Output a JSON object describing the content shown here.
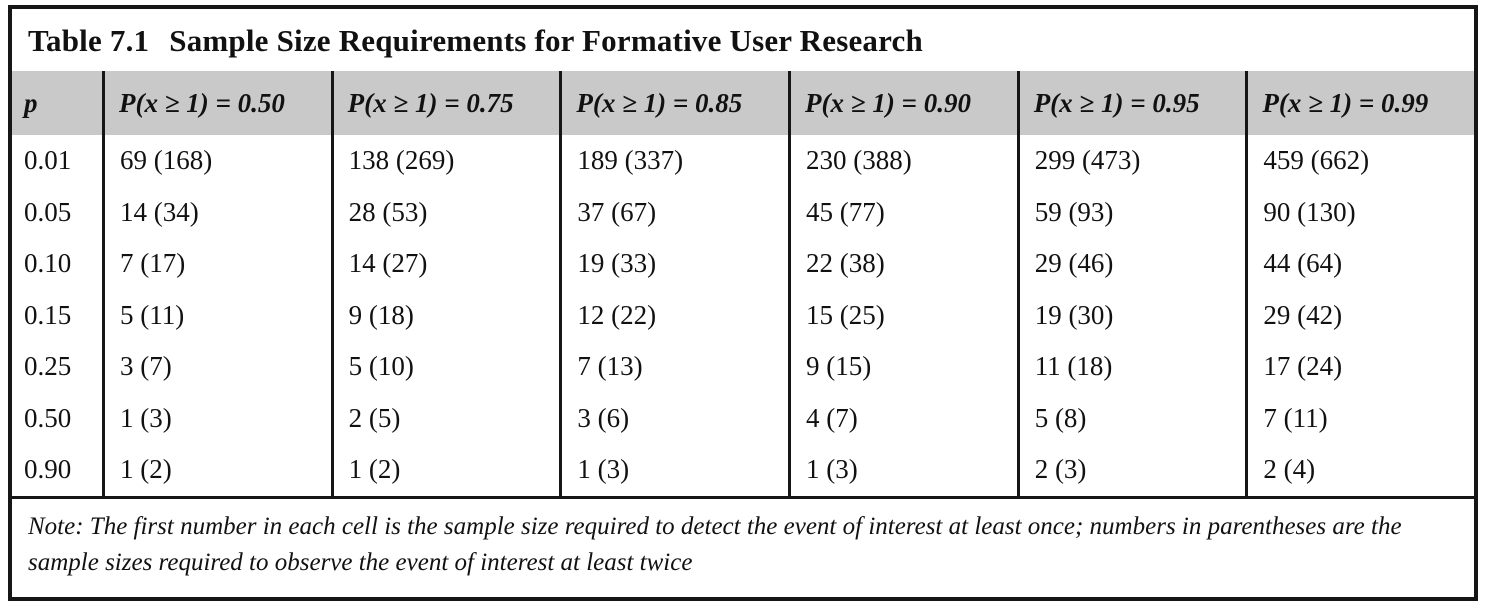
{
  "title": {
    "label": "Table 7.1",
    "text": "Sample Size Requirements for Formative User Research"
  },
  "table": {
    "row_header": {
      "label": "p",
      "values": [
        "0.01",
        "0.05",
        "0.10",
        "0.15",
        "0.25",
        "0.50",
        "0.90"
      ]
    },
    "columns": [
      {
        "header": "P(x ≥ 1) = 0.50",
        "values": [
          "69 (168)",
          "14 (34)",
          "7 (17)",
          "5 (11)",
          "3 (7)",
          "1 (3)",
          "1 (2)"
        ]
      },
      {
        "header": "P(x ≥ 1) = 0.75",
        "values": [
          "138 (269)",
          "28 (53)",
          "14 (27)",
          "9 (18)",
          "5 (10)",
          "2 (5)",
          "1 (2)"
        ]
      },
      {
        "header": "P(x ≥ 1) = 0.85",
        "values": [
          "189 (337)",
          "37 (67)",
          "19 (33)",
          "12 (22)",
          "7 (13)",
          "3 (6)",
          "1 (3)"
        ]
      },
      {
        "header": "P(x ≥ 1) = 0.90",
        "values": [
          "230 (388)",
          "45 (77)",
          "22 (38)",
          "15 (25)",
          "9 (15)",
          "4 (7)",
          "1 (3)"
        ]
      },
      {
        "header": "P(x ≥ 1) = 0.95",
        "values": [
          "299 (473)",
          "59 (93)",
          "29 (46)",
          "19 (30)",
          "11 (18)",
          "5 (8)",
          "2 (3)"
        ]
      },
      {
        "header": "P(x ≥ 1) = 0.99",
        "values": [
          "459 (662)",
          "90 (130)",
          "44 (64)",
          "29 (42)",
          "17 (24)",
          "7 (11)",
          "2 (4)"
        ]
      }
    ]
  },
  "note": {
    "text": "Note: The first number in each cell is the sample size required to detect the event of interest at least once; numbers in parentheses are the sample sizes required to observe the event of interest at least twice"
  },
  "colors": {
    "header_bg": "#c9c9c9",
    "border": "#161616",
    "text": "#111111",
    "background": "#ffffff"
  }
}
